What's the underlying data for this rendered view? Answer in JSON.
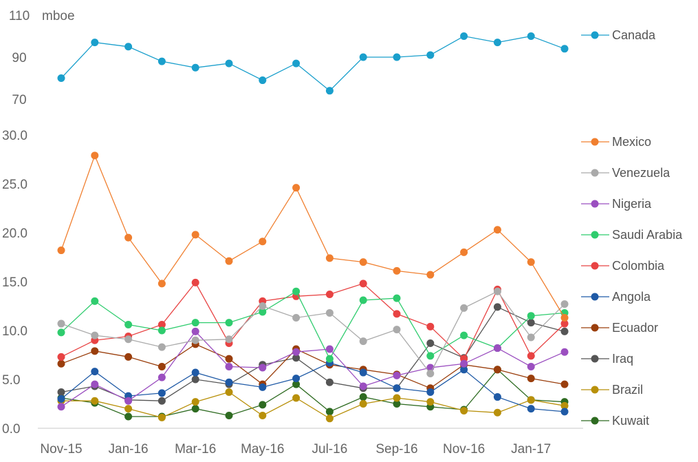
{
  "chart_data": [
    {
      "type": "line",
      "panel": "top",
      "unit_label": "mboe",
      "x": [
        "Nov-15",
        "Dec-15",
        "Jan-16",
        "Feb-16",
        "Mar-16",
        "Apr-16",
        "May-16",
        "Jun-16",
        "Jul-16",
        "Aug-16",
        "Sep-16",
        "Oct-16",
        "Nov-16",
        "Dec-16",
        "Jan-17",
        "Feb-17"
      ],
      "x_tick_labels": [
        "Nov-15",
        "Jan-16",
        "Mar-16",
        "May-16",
        "Jul-16",
        "Sep-16",
        "Nov-16",
        "Jan-17"
      ],
      "y_ticks": [
        "110",
        "90",
        "70"
      ],
      "ylim": [
        65,
        112
      ],
      "legend_position": "right",
      "series": [
        {
          "name": "Canada",
          "color": "#1a9fcc",
          "values": [
            80,
            97,
            95,
            88,
            85,
            87,
            79,
            87,
            74,
            90,
            90,
            91,
            100,
            97,
            100,
            94
          ]
        }
      ]
    },
    {
      "type": "line",
      "panel": "bottom",
      "x": [
        "Nov-15",
        "Dec-15",
        "Jan-16",
        "Feb-16",
        "Mar-16",
        "Apr-16",
        "May-16",
        "Jun-16",
        "Jul-16",
        "Aug-16",
        "Sep-16",
        "Oct-16",
        "Nov-16",
        "Dec-16",
        "Jan-17",
        "Feb-17"
      ],
      "x_tick_labels": [
        "Nov-15",
        "Jan-16",
        "Mar-16",
        "May-16",
        "Jul-16",
        "Sep-16",
        "Nov-16",
        "Jan-17"
      ],
      "y_ticks": [
        "30.0",
        "25.0",
        "20.0",
        "15.0",
        "10.0",
        "5.0",
        "0.0"
      ],
      "ylim": [
        0,
        30
      ],
      "legend_position": "right",
      "series": [
        {
          "name": "Mexico",
          "color": "#f07f2f",
          "values": [
            18.2,
            27.9,
            19.5,
            14.8,
            19.8,
            17.1,
            19.1,
            24.6,
            17.4,
            17.0,
            16.1,
            15.7,
            18.0,
            20.3,
            17.0,
            11.3
          ]
        },
        {
          "name": "Venezuela",
          "color": "#aaaaaa",
          "values": [
            10.7,
            9.5,
            9.1,
            8.3,
            9.0,
            9.1,
            12.5,
            11.3,
            11.8,
            8.9,
            10.1,
            5.6,
            12.3,
            14.0,
            9.3,
            12.7
          ]
        },
        {
          "name": "Nigeria",
          "color": "#9b4fc0",
          "values": [
            2.2,
            4.5,
            2.8,
            5.2,
            9.9,
            6.3,
            6.2,
            7.8,
            8.1,
            4.3,
            5.4,
            6.2,
            6.6,
            8.2,
            6.3,
            7.8
          ]
        },
        {
          "name": "Saudi Arabia",
          "color": "#2fcc6e",
          "values": [
            9.8,
            13.0,
            10.6,
            10.0,
            10.8,
            10.8,
            11.9,
            14.0,
            7.1,
            13.1,
            13.3,
            7.4,
            9.5,
            8.2,
            11.5,
            11.8
          ]
        },
        {
          "name": "Colombia",
          "color": "#e84343",
          "values": [
            7.3,
            9.0,
            9.4,
            10.6,
            14.9,
            8.7,
            13.0,
            13.5,
            13.7,
            14.8,
            11.7,
            10.4,
            7.1,
            14.2,
            7.4,
            10.7
          ]
        },
        {
          "name": "Angola",
          "color": "#1f5aa6",
          "values": [
            3.0,
            5.8,
            3.3,
            3.6,
            5.7,
            4.7,
            4.2,
            5.1,
            6.7,
            5.7,
            4.1,
            3.7,
            6.0,
            3.2,
            2.0,
            1.7
          ]
        },
        {
          "name": "Ecuador",
          "color": "#9a3e0c",
          "values": [
            6.6,
            7.9,
            7.3,
            6.3,
            8.6,
            7.1,
            4.5,
            8.1,
            6.5,
            6.0,
            5.5,
            4.1,
            6.5,
            6.0,
            5.1,
            4.5
          ]
        },
        {
          "name": "Iraq",
          "color": "#555555",
          "values": [
            3.7,
            4.3,
            2.9,
            2.8,
            5.0,
            4.5,
            6.5,
            7.2,
            4.7,
            4.1,
            4.1,
            8.7,
            7.2,
            12.4,
            10.8,
            9.9
          ]
        },
        {
          "name": "Brazil",
          "color": "#b8900a",
          "values": [
            2.8,
            2.8,
            2.0,
            1.1,
            2.7,
            3.7,
            1.3,
            3.1,
            1.0,
            2.5,
            3.1,
            2.7,
            1.8,
            1.6,
            2.9,
            2.3
          ]
        },
        {
          "name": "Kuwait",
          "color": "#2e6b21",
          "values": [
            3.1,
            2.6,
            1.2,
            1.2,
            2.0,
            1.3,
            2.4,
            4.5,
            1.7,
            3.2,
            2.5,
            2.2,
            1.9,
            6.0,
            2.9,
            2.7
          ]
        }
      ]
    }
  ]
}
